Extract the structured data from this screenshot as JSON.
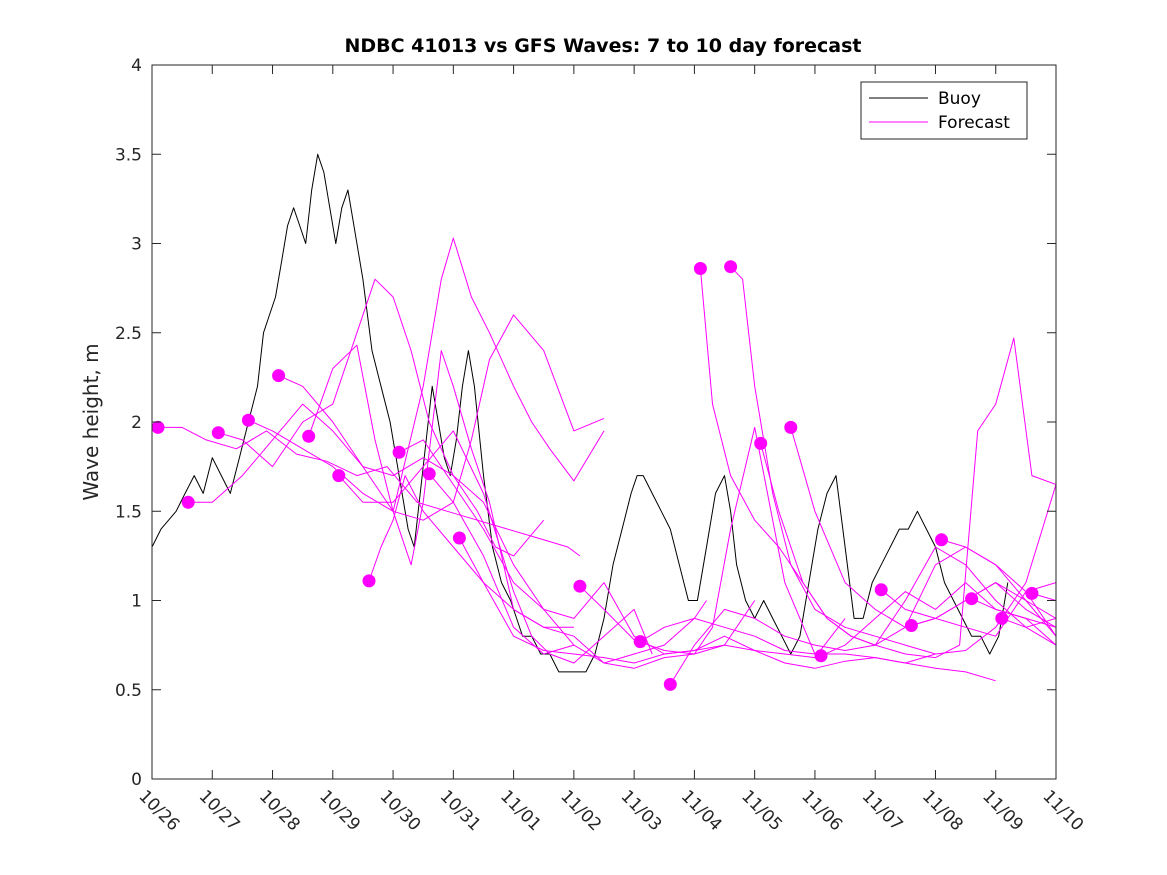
{
  "chart_data": {
    "type": "line",
    "title": "NDBC 41013 vs GFS Waves: 7 to 10 day forecast",
    "xlabel": "",
    "ylabel": "Wave height, m",
    "xlim": [
      0,
      15
    ],
    "ylim": [
      0,
      4
    ],
    "x_tick_values": [
      0,
      1,
      2,
      3,
      4,
      5,
      6,
      7,
      8,
      9,
      10,
      11,
      12,
      13,
      14,
      15
    ],
    "x_tick_labels": [
      "10/26",
      "10/27",
      "10/28",
      "10/29",
      "10/30",
      "10/31",
      "11/01",
      "11/02",
      "11/03",
      "11/04",
      "11/05",
      "11/06",
      "11/07",
      "11/08",
      "11/09",
      "11/10"
    ],
    "y_tick_values": [
      0,
      0.5,
      1,
      1.5,
      2,
      2.5,
      3,
      3.5,
      4
    ],
    "y_tick_labels": [
      "0",
      "0.5",
      "1",
      "1.5",
      "2",
      "2.5",
      "3",
      "3.5",
      "4"
    ],
    "grid": false,
    "legend": {
      "location": "top-right",
      "entries": [
        {
          "label": "Buoy",
          "color": "#000000"
        },
        {
          "label": "Forecast",
          "color": "#ff00ff"
        }
      ]
    },
    "colors": {
      "buoy": "#000000",
      "forecast": "#ff00ff",
      "axis": "#262626"
    },
    "series": [
      {
        "name": "Buoy",
        "role": "buoy",
        "x": [
          0,
          0.15,
          0.4,
          0.55,
          0.7,
          0.85,
          1.0,
          1.15,
          1.3,
          1.45,
          1.6,
          1.75,
          1.85,
          1.95,
          2.05,
          2.15,
          2.25,
          2.35,
          2.45,
          2.55,
          2.65,
          2.75,
          2.85,
          2.95,
          3.05,
          3.15,
          3.25,
          3.35,
          3.5,
          3.65,
          3.8,
          3.95,
          4.05,
          4.15,
          4.25,
          4.35,
          4.45,
          4.55,
          4.65,
          4.75,
          4.85,
          4.95,
          5.05,
          5.15,
          5.25,
          5.35,
          5.5,
          5.65,
          5.8,
          5.95,
          6.05,
          6.15,
          6.3,
          6.45,
          6.6,
          6.75,
          6.9,
          7.05,
          7.2,
          7.35,
          7.5,
          7.65,
          7.8,
          7.95,
          8.05,
          8.15,
          8.3,
          8.45,
          8.6,
          8.75,
          8.9,
          9.05,
          9.2,
          9.35,
          9.5,
          9.6,
          9.7,
          9.85,
          10.0,
          10.15,
          10.3,
          10.45,
          10.6,
          10.75,
          10.9,
          11.05,
          11.2,
          11.35,
          11.5,
          11.65,
          11.8,
          11.95,
          12.1,
          12.25,
          12.4,
          12.55,
          12.7,
          12.85,
          13.0,
          13.15,
          13.3,
          13.45,
          13.6,
          13.75,
          13.9,
          14.05,
          14.2
        ],
        "y": [
          1.3,
          1.4,
          1.5,
          1.6,
          1.7,
          1.6,
          1.8,
          1.7,
          1.6,
          1.8,
          2.0,
          2.2,
          2.5,
          2.6,
          2.7,
          2.9,
          3.1,
          3.2,
          3.1,
          3.0,
          3.3,
          3.5,
          3.4,
          3.2,
          3.0,
          3.2,
          3.3,
          3.1,
          2.8,
          2.4,
          2.2,
          2.0,
          1.8,
          1.6,
          1.4,
          1.3,
          1.6,
          1.9,
          2.2,
          2.0,
          1.8,
          1.7,
          1.9,
          2.2,
          2.4,
          2.2,
          1.7,
          1.3,
          1.1,
          1.0,
          0.9,
          0.8,
          0.8,
          0.7,
          0.7,
          0.6,
          0.6,
          0.6,
          0.6,
          0.7,
          0.9,
          1.2,
          1.4,
          1.6,
          1.7,
          1.7,
          1.6,
          1.5,
          1.4,
          1.2,
          1.0,
          1.0,
          1.3,
          1.6,
          1.7,
          1.5,
          1.2,
          1.0,
          0.9,
          1.0,
          0.9,
          0.8,
          0.7,
          0.8,
          1.1,
          1.4,
          1.6,
          1.7,
          1.3,
          0.9,
          0.9,
          1.1,
          1.2,
          1.3,
          1.4,
          1.4,
          1.5,
          1.4,
          1.3,
          1.1,
          1.0,
          0.9,
          0.8,
          0.8,
          0.7,
          0.8,
          1.1
        ]
      },
      {
        "name": "Forecast",
        "role": "forecast",
        "x": [
          0.1,
          0.5,
          0.9,
          1.4,
          1.9,
          2.4,
          2.9,
          3.4,
          3.9,
          4.4,
          4.9,
          5.4,
          5.9,
          6.4,
          6.9,
          7.1
        ],
        "y": [
          1.97,
          1.97,
          1.9,
          1.85,
          1.95,
          1.82,
          1.78,
          1.7,
          1.75,
          1.55,
          1.5,
          1.45,
          1.4,
          1.35,
          1.3,
          1.25
        ]
      },
      {
        "name": "Forecast",
        "role": "forecast",
        "x": [
          0.6,
          1.0,
          1.5,
          2.0,
          2.5,
          3.0,
          3.5,
          4.0,
          4.5,
          5.0,
          5.5,
          6.0,
          6.5,
          7.0
        ],
        "y": [
          1.55,
          1.55,
          1.7,
          1.9,
          2.1,
          1.95,
          1.75,
          1.7,
          1.8,
          1.7,
          1.55,
          1.2,
          0.95,
          0.75
        ]
      },
      {
        "name": "Forecast",
        "role": "forecast",
        "x": [
          1.1,
          1.5,
          2.0,
          2.5,
          3.0,
          3.4,
          3.7,
          4.0,
          4.3,
          4.6,
          5.0,
          5.4,
          5.7,
          6.0,
          6.5
        ],
        "y": [
          1.94,
          1.9,
          1.75,
          2.0,
          2.1,
          2.5,
          2.8,
          2.7,
          2.4,
          2.0,
          1.7,
          1.5,
          1.3,
          1.25,
          1.45
        ]
      },
      {
        "name": "Forecast",
        "role": "forecast",
        "x": [
          1.6,
          2.0,
          2.5,
          3.0,
          3.5,
          4.0,
          4.5,
          5.0,
          5.3,
          5.6,
          6.0,
          6.5,
          7.0,
          7.5
        ],
        "y": [
          2.01,
          1.95,
          1.85,
          1.75,
          1.6,
          1.5,
          1.45,
          1.55,
          1.9,
          2.35,
          2.6,
          2.4,
          1.95,
          2.02
        ]
      },
      {
        "name": "Forecast",
        "role": "forecast",
        "x": [
          2.1,
          2.5,
          3.0,
          3.5,
          4.0,
          4.5,
          4.8,
          5.0,
          5.3,
          5.6,
          6.0,
          6.3,
          6.6,
          7.0,
          7.5
        ],
        "y": [
          2.26,
          2.2,
          2.0,
          1.75,
          1.5,
          2.2,
          2.8,
          3.03,
          2.7,
          2.5,
          2.2,
          2.0,
          1.85,
          1.67,
          1.95
        ]
      },
      {
        "name": "Forecast",
        "role": "forecast",
        "x": [
          2.6,
          3.0,
          3.4,
          3.7,
          4.0,
          4.3,
          4.5,
          4.8,
          5.0,
          5.3,
          5.6,
          6.0,
          6.5,
          7.0
        ],
        "y": [
          1.92,
          2.3,
          2.43,
          1.9,
          1.5,
          1.2,
          1.55,
          2.4,
          2.2,
          1.85,
          1.55,
          0.95,
          0.85,
          0.85
        ]
      },
      {
        "name": "Forecast",
        "role": "forecast",
        "x": [
          3.1,
          3.5,
          4.0,
          4.5,
          5.0,
          5.5,
          6.0,
          6.3,
          6.6,
          7.0,
          7.5,
          8.0,
          8.3
        ],
        "y": [
          1.7,
          1.55,
          1.55,
          1.75,
          1.95,
          1.6,
          1.05,
          0.8,
          0.7,
          0.65,
          0.8,
          0.95,
          0.7
        ]
      },
      {
        "name": "Forecast",
        "role": "forecast",
        "x": [
          3.6,
          3.8,
          4.0,
          4.2,
          4.5,
          5.0,
          5.5,
          6.0,
          6.5,
          7.0,
          7.5,
          8.0,
          8.5,
          9.0,
          9.2
        ],
        "y": [
          1.11,
          1.3,
          1.45,
          1.7,
          1.5,
          1.3,
          1.1,
          0.95,
          0.85,
          0.8,
          0.65,
          0.7,
          0.75,
          0.9,
          1.0
        ]
      },
      {
        "name": "Forecast",
        "role": "forecast",
        "x": [
          4.1,
          4.5,
          5.0,
          5.5,
          6.0,
          6.5,
          7.0,
          7.5,
          8.0,
          8.5,
          9.0,
          9.5,
          10.0
        ],
        "y": [
          1.83,
          1.9,
          1.65,
          1.4,
          1.1,
          0.95,
          0.9,
          1.1,
          0.8,
          0.7,
          0.72,
          0.75,
          1.0
        ]
      },
      {
        "name": "Forecast",
        "role": "forecast",
        "x": [
          4.6,
          5.0,
          5.5,
          6.0,
          6.5,
          7.0,
          7.5,
          8.0,
          8.5,
          9.0,
          9.3,
          9.6,
          10.0,
          10.5,
          11.0
        ],
        "y": [
          1.71,
          1.55,
          1.25,
          0.85,
          0.7,
          0.75,
          0.65,
          0.62,
          0.68,
          0.7,
          0.85,
          1.4,
          1.97,
          1.1,
          0.7
        ]
      },
      {
        "name": "Forecast",
        "role": "forecast",
        "x": [
          5.1,
          5.5,
          6.0,
          6.5,
          7.0,
          7.5,
          8.0,
          8.5,
          9.0,
          9.5,
          10.0,
          10.5,
          11.0,
          11.5
        ],
        "y": [
          1.35,
          1.1,
          0.8,
          0.72,
          0.7,
          0.68,
          0.65,
          0.7,
          0.72,
          0.8,
          0.72,
          0.7,
          0.68,
          0.9
        ]
      },
      {
        "name": "Forecast",
        "role": "forecast",
        "x": [
          7.1,
          7.5,
          8.0,
          8.5,
          9.0,
          9.5,
          10.0,
          10.5,
          11.0,
          11.5,
          12.0,
          12.5,
          13.0
        ],
        "y": [
          1.08,
          0.95,
          0.78,
          0.72,
          0.7,
          0.75,
          0.72,
          0.65,
          0.62,
          0.66,
          0.68,
          0.65,
          0.7
        ]
      },
      {
        "name": "Forecast",
        "role": "forecast",
        "x": [
          8.1,
          8.5,
          9.0,
          9.5,
          10.0,
          10.5,
          11.0,
          11.5,
          12.0,
          12.5,
          13.0,
          13.5,
          14.0
        ],
        "y": [
          0.77,
          0.85,
          0.9,
          0.85,
          0.8,
          0.72,
          0.7,
          0.7,
          0.68,
          0.65,
          0.62,
          0.6,
          0.55
        ]
      },
      {
        "name": "Forecast",
        "role": "forecast",
        "x": [
          8.6,
          9.0,
          9.5,
          10.0,
          10.5,
          11.0,
          11.5,
          12.0,
          12.5,
          13.0,
          13.5,
          14.0,
          14.5,
          15.0
        ],
        "y": [
          0.53,
          0.75,
          0.95,
          0.9,
          0.8,
          0.75,
          0.72,
          0.75,
          1.0,
          1.3,
          1.2,
          1.0,
          0.85,
          0.75
        ]
      },
      {
        "name": "Forecast",
        "role": "forecast",
        "x": [
          9.1,
          9.3,
          9.6,
          10.0,
          10.4,
          10.8,
          11.2,
          11.6,
          12.0,
          12.5,
          13.0,
          13.5,
          14.0,
          14.5,
          15.0
        ],
        "y": [
          2.86,
          2.1,
          1.7,
          1.45,
          1.3,
          1.1,
          0.9,
          0.8,
          0.75,
          0.85,
          0.9,
          1.0,
          1.1,
          1.0,
          0.8
        ]
      },
      {
        "name": "Forecast",
        "role": "forecast",
        "x": [
          9.6,
          9.8,
          10.0,
          10.3,
          10.6,
          11.0,
          11.5,
          12.0,
          12.5,
          13.0,
          13.5,
          14.0,
          14.5,
          15.0
        ],
        "y": [
          2.87,
          2.8,
          2.2,
          1.6,
          1.2,
          0.95,
          0.85,
          0.8,
          0.75,
          0.7,
          0.72,
          0.85,
          1.1,
          1.65
        ]
      },
      {
        "name": "Forecast",
        "role": "forecast",
        "x": [
          10.1,
          10.4,
          10.8,
          11.2,
          11.6,
          12.0,
          12.5,
          13.0,
          13.4,
          13.7,
          14.0,
          14.3,
          14.6,
          15.0
        ],
        "y": [
          1.88,
          1.5,
          1.1,
          0.9,
          0.8,
          0.75,
          0.7,
          0.68,
          0.75,
          1.95,
          2.1,
          2.47,
          1.7,
          1.65
        ]
      },
      {
        "name": "Forecast",
        "role": "forecast",
        "x": [
          10.6,
          11.0,
          11.5,
          12.0,
          12.5,
          13.0,
          13.5,
          14.0,
          14.5,
          15.0
        ],
        "y": [
          1.97,
          1.5,
          1.1,
          0.95,
          0.85,
          1.2,
          1.3,
          1.2,
          1.05,
          0.8
        ]
      },
      {
        "name": "Forecast",
        "role": "forecast",
        "x": [
          11.1,
          11.5,
          12.0,
          12.5,
          13.0,
          13.5,
          14.0,
          14.5,
          15.0
        ],
        "y": [
          0.69,
          0.75,
          0.9,
          1.05,
          0.95,
          1.1,
          0.95,
          0.9,
          0.75
        ]
      },
      {
        "name": "Forecast",
        "role": "forecast",
        "x": [
          12.1,
          12.5,
          13.0,
          13.5,
          14.0,
          14.5,
          15.0
        ],
        "y": [
          1.06,
          0.95,
          0.9,
          0.85,
          0.8,
          1.05,
          1.1
        ]
      },
      {
        "name": "Forecast",
        "role": "forecast",
        "x": [
          12.6,
          13.0,
          13.5,
          14.0,
          14.5,
          15.0
        ],
        "y": [
          0.86,
          0.9,
          1.0,
          1.1,
          0.95,
          0.85
        ]
      },
      {
        "name": "Forecast",
        "role": "forecast",
        "x": [
          13.1,
          13.5,
          14.0,
          14.5,
          15.0
        ],
        "y": [
          1.34,
          1.3,
          1.2,
          1.0,
          0.9
        ]
      },
      {
        "name": "Forecast",
        "role": "forecast",
        "x": [
          13.6,
          14.0,
          14.5,
          15.0
        ],
        "y": [
          1.01,
          0.95,
          0.9,
          0.85
        ]
      },
      {
        "name": "Forecast",
        "role": "forecast",
        "x": [
          14.1,
          14.5,
          15.0
        ],
        "y": [
          0.9,
          0.85,
          0.9
        ]
      },
      {
        "name": "Forecast",
        "role": "forecast",
        "x": [
          14.6,
          15.0
        ],
        "y": [
          1.04,
          1.0
        ]
      }
    ],
    "forecast_start_markers": {
      "x": [
        0.1,
        0.6,
        1.1,
        1.6,
        2.1,
        2.6,
        3.1,
        3.6,
        4.1,
        4.6,
        5.1,
        7.1,
        8.1,
        8.6,
        9.1,
        9.6,
        10.1,
        10.6,
        11.1,
        12.1,
        12.6,
        13.1,
        13.6,
        14.1,
        14.6
      ],
      "y": [
        1.97,
        1.55,
        1.94,
        2.01,
        2.26,
        1.92,
        1.7,
        1.11,
        1.83,
        1.71,
        1.35,
        1.08,
        0.77,
        0.53,
        2.86,
        2.87,
        1.88,
        1.97,
        0.69,
        1.06,
        0.86,
        1.34,
        1.01,
        0.9,
        1.04
      ]
    }
  }
}
